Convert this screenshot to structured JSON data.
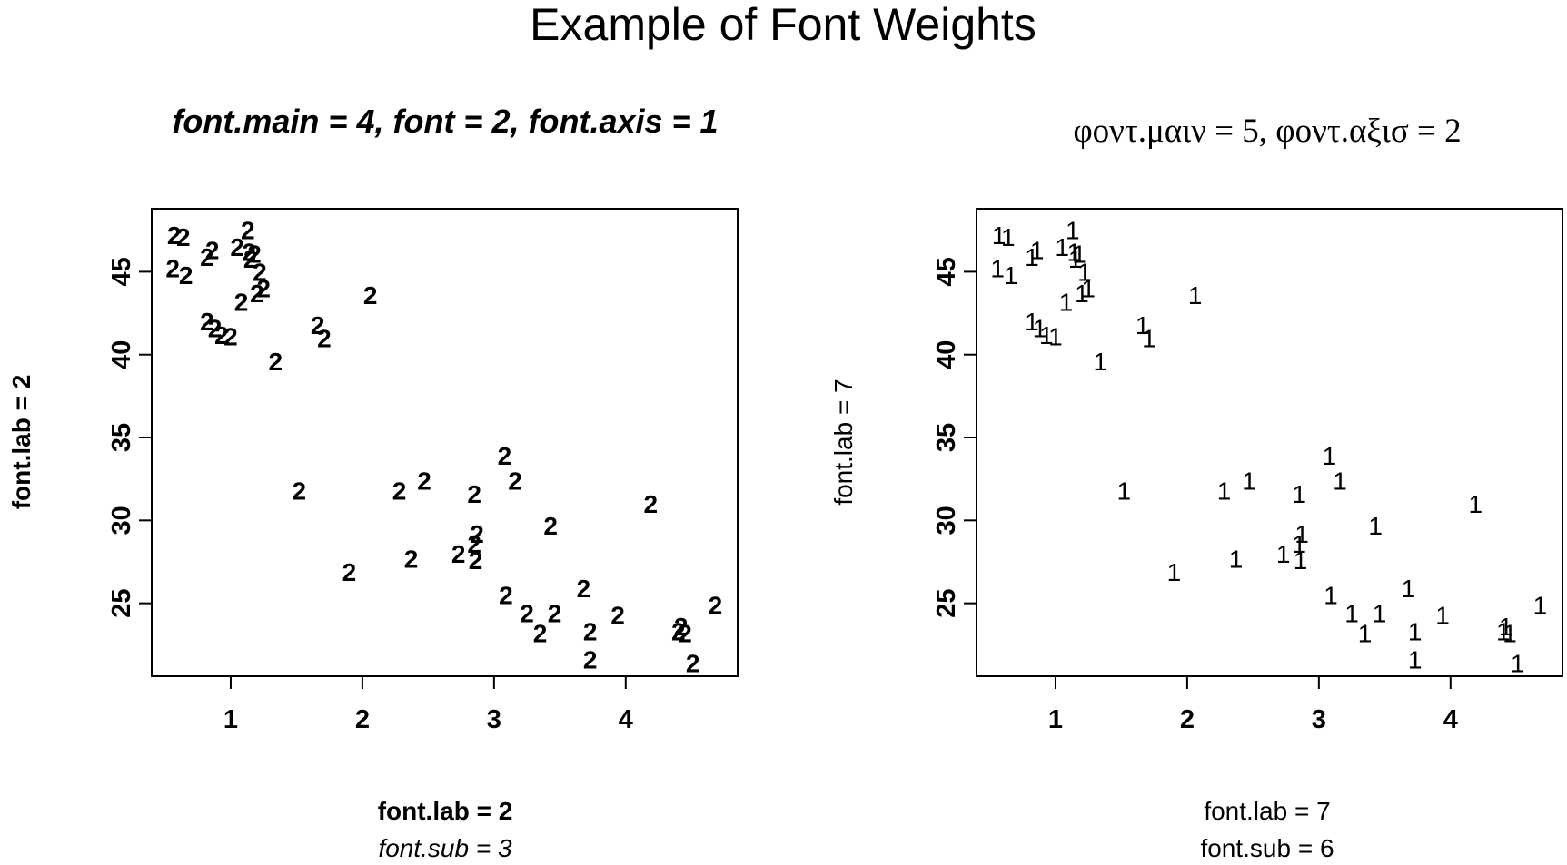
{
  "title": "Example of Font Weights",
  "chart_data": [
    {
      "type": "scatter",
      "title": "font.main = 4, font = 2, font.axis = 1",
      "xlabel": "font.lab = 2",
      "ylabel": "font.lab = 2",
      "subtitle": "font.sub = 3",
      "point_symbol": "2",
      "xlim": [
        0.4,
        4.85
      ],
      "ylim": [
        20.6,
        48.8
      ],
      "xticks": [
        1,
        2,
        3,
        4
      ],
      "yticks": [
        25,
        30,
        35,
        40,
        45
      ],
      "points": [
        [
          0.57,
          47.2
        ],
        [
          0.64,
          47.1
        ],
        [
          0.56,
          45.2
        ],
        [
          0.66,
          44.8
        ],
        [
          0.82,
          45.9
        ],
        [
          0.86,
          46.3
        ],
        [
          1.05,
          46.5
        ],
        [
          1.14,
          46.2
        ],
        [
          1.18,
          46.1
        ],
        [
          1.15,
          45.8
        ],
        [
          1.22,
          45.0
        ],
        [
          1.13,
          47.5
        ],
        [
          1.08,
          43.2
        ],
        [
          1.2,
          43.7
        ],
        [
          1.25,
          44.0
        ],
        [
          0.82,
          42.0
        ],
        [
          0.88,
          41.6
        ],
        [
          0.93,
          41.2
        ],
        [
          1.0,
          41.1
        ],
        [
          1.34,
          39.6
        ],
        [
          1.66,
          41.8
        ],
        [
          1.71,
          41.0
        ],
        [
          2.06,
          43.6
        ],
        [
          1.52,
          31.8
        ],
        [
          2.28,
          31.8
        ],
        [
          2.47,
          32.4
        ],
        [
          2.85,
          31.6
        ],
        [
          3.08,
          33.9
        ],
        [
          3.16,
          32.4
        ],
        [
          3.43,
          29.7
        ],
        [
          4.19,
          31.0
        ],
        [
          2.87,
          29.2
        ],
        [
          2.85,
          28.6
        ],
        [
          2.73,
          28.0
        ],
        [
          2.86,
          27.6
        ],
        [
          2.37,
          27.7
        ],
        [
          1.9,
          26.9
        ],
        [
          3.09,
          25.5
        ],
        [
          3.25,
          24.4
        ],
        [
          3.35,
          23.2
        ],
        [
          3.46,
          24.4
        ],
        [
          3.68,
          25.9
        ],
        [
          3.73,
          23.3
        ],
        [
          3.73,
          21.6
        ],
        [
          3.94,
          24.3
        ],
        [
          4.42,
          23.6
        ],
        [
          4.4,
          23.3
        ],
        [
          4.45,
          23.2
        ],
        [
          4.51,
          21.4
        ],
        [
          4.68,
          24.9
        ]
      ]
    },
    {
      "type": "scatter",
      "title": "φοντ.μαιν = 5, φοντ.αξισ = 2",
      "xlabel": "font.lab = 7",
      "ylabel": "font.lab = 7",
      "subtitle": "font.sub = 6",
      "point_symbol": "1",
      "xlim": [
        0.4,
        4.85
      ],
      "ylim": [
        20.6,
        48.8
      ],
      "xticks": [
        1,
        2,
        3,
        4
      ],
      "yticks": [
        25,
        30,
        35,
        40,
        45
      ],
      "points": [
        [
          0.57,
          47.2
        ],
        [
          0.64,
          47.1
        ],
        [
          0.56,
          45.2
        ],
        [
          0.66,
          44.8
        ],
        [
          0.82,
          45.9
        ],
        [
          0.86,
          46.3
        ],
        [
          1.05,
          46.5
        ],
        [
          1.14,
          46.2
        ],
        [
          1.18,
          46.1
        ],
        [
          1.15,
          45.8
        ],
        [
          1.22,
          45.0
        ],
        [
          1.13,
          47.5
        ],
        [
          1.08,
          43.2
        ],
        [
          1.2,
          43.7
        ],
        [
          1.25,
          44.0
        ],
        [
          0.82,
          42.0
        ],
        [
          0.88,
          41.6
        ],
        [
          0.93,
          41.2
        ],
        [
          1.0,
          41.1
        ],
        [
          1.34,
          39.6
        ],
        [
          1.66,
          41.8
        ],
        [
          1.71,
          41.0
        ],
        [
          2.06,
          43.6
        ],
        [
          1.52,
          31.8
        ],
        [
          2.28,
          31.8
        ],
        [
          2.47,
          32.4
        ],
        [
          2.85,
          31.6
        ],
        [
          3.08,
          33.9
        ],
        [
          3.16,
          32.4
        ],
        [
          3.43,
          29.7
        ],
        [
          4.19,
          31.0
        ],
        [
          2.87,
          29.2
        ],
        [
          2.85,
          28.6
        ],
        [
          2.73,
          28.0
        ],
        [
          2.86,
          27.6
        ],
        [
          2.37,
          27.7
        ],
        [
          1.9,
          26.9
        ],
        [
          3.09,
          25.5
        ],
        [
          3.25,
          24.4
        ],
        [
          3.35,
          23.2
        ],
        [
          3.46,
          24.4
        ],
        [
          3.68,
          25.9
        ],
        [
          3.73,
          23.3
        ],
        [
          3.73,
          21.6
        ],
        [
          3.94,
          24.3
        ],
        [
          4.42,
          23.6
        ],
        [
          4.4,
          23.3
        ],
        [
          4.45,
          23.2
        ],
        [
          4.51,
          21.4
        ],
        [
          4.68,
          24.9
        ]
      ]
    }
  ]
}
